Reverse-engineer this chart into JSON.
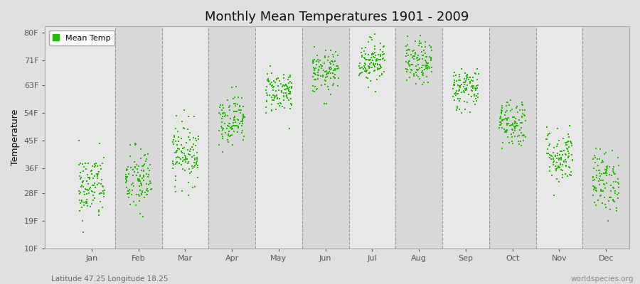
{
  "title": "Monthly Mean Temperatures 1901 - 2009",
  "ylabel": "Temperature",
  "subtitle_left": "Latitude 47.25 Longitude 18.25",
  "subtitle_right": "worldspecies.org",
  "yticks": [
    10,
    19,
    28,
    36,
    45,
    54,
    63,
    71,
    80
  ],
  "ytick_labels": [
    "10F",
    "19F",
    "28F",
    "36F",
    "45F",
    "54F",
    "63F",
    "71F",
    "80F"
  ],
  "ylim": [
    10,
    82
  ],
  "xlim": [
    0.0,
    12.5
  ],
  "months": [
    "Jan",
    "Feb",
    "Mar",
    "Apr",
    "May",
    "Jun",
    "Jul",
    "Aug",
    "Sep",
    "Oct",
    "Nov",
    "Dec"
  ],
  "dot_color": "#22bb00",
  "bg_color": "#e0e0e0",
  "plot_bg_color_light": "#e8e8e8",
  "plot_bg_color_dark": "#d8d8d8",
  "legend_label": "Mean Temp",
  "dot_size": 3,
  "years": 109,
  "monthly_mean_F": [
    30,
    32,
    41,
    52,
    61,
    67,
    71,
    70,
    62,
    51,
    40,
    32
  ],
  "monthly_std_F": [
    5.5,
    5.5,
    5.0,
    4.0,
    3.5,
    3.5,
    3.5,
    3.5,
    3.5,
    4.0,
    4.5,
    5.0
  ],
  "title_fontsize": 13,
  "axis_fontsize": 8,
  "ylabel_fontsize": 9
}
